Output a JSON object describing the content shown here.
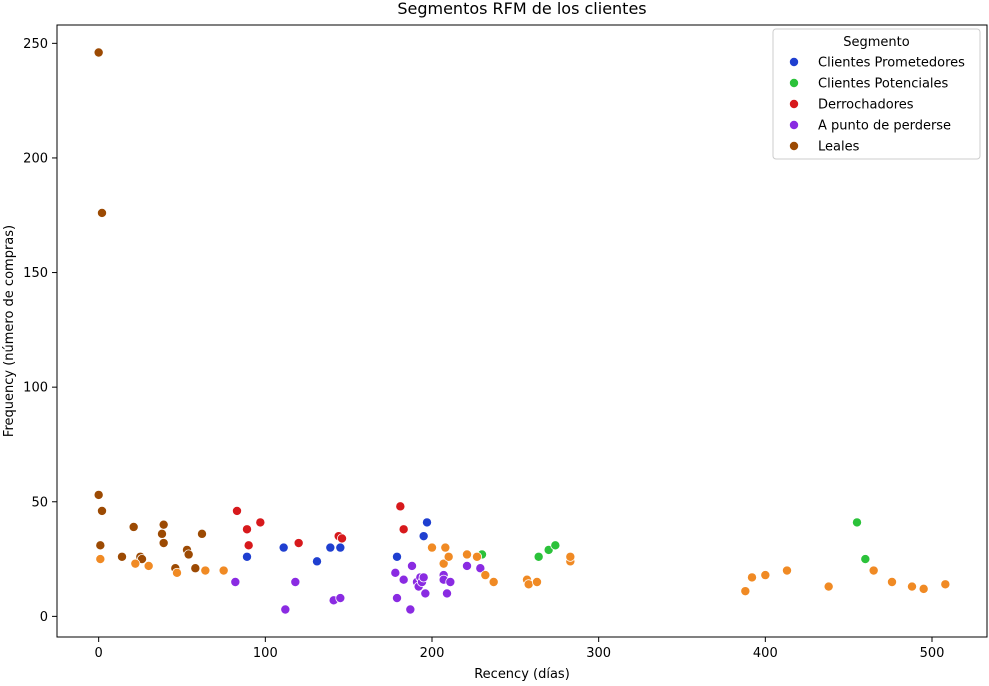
{
  "chart_data": {
    "type": "scatter",
    "title": "Segmentos RFM de los clientes",
    "xlabel": "Recency (días)",
    "ylabel": "Frequency (número de compras)",
    "xlim": [
      -25,
      533
    ],
    "ylim": [
      -9,
      258
    ],
    "xticks": [
      0,
      100,
      200,
      300,
      400,
      500
    ],
    "yticks": [
      0,
      50,
      100,
      150,
      200,
      250
    ],
    "grid": false,
    "legend": {
      "title": "Segmento",
      "placement": "top-right",
      "entries": [
        "Clientes Prometedores",
        "Clientes Potenciales",
        "Derrochadores",
        "A punto de perderse",
        "Leales"
      ]
    },
    "series": [
      {
        "name": "Clientes Prometedores",
        "color": "#1f3fd0",
        "points": [
          [
            89,
            26
          ],
          [
            111,
            30
          ],
          [
            131,
            24
          ],
          [
            139,
            30
          ],
          [
            145,
            30
          ],
          [
            179,
            26
          ],
          [
            195,
            35
          ],
          [
            197,
            41
          ]
        ]
      },
      {
        "name": "Clientes Potenciales",
        "color": "#2bc23a",
        "points": [
          [
            230,
            27
          ],
          [
            264,
            26
          ],
          [
            270,
            29
          ],
          [
            274,
            31
          ],
          [
            455,
            41
          ],
          [
            460,
            25
          ]
        ]
      },
      {
        "name": "Derrochadores",
        "color": "#d7191c",
        "points": [
          [
            83,
            46
          ],
          [
            89,
            38
          ],
          [
            90,
            31
          ],
          [
            97,
            41
          ],
          [
            120,
            32
          ],
          [
            144,
            35
          ],
          [
            146,
            34
          ],
          [
            181,
            48
          ],
          [
            183,
            38
          ]
        ]
      },
      {
        "name": "A punto de perderse",
        "color": "#8a2be2",
        "points": [
          [
            82,
            15
          ],
          [
            112,
            3
          ],
          [
            118,
            15
          ],
          [
            141,
            7
          ],
          [
            145,
            8
          ],
          [
            178,
            19
          ],
          [
            179,
            8
          ],
          [
            183,
            16
          ],
          [
            187,
            3
          ],
          [
            188,
            22
          ],
          [
            191,
            15
          ],
          [
            192,
            13
          ],
          [
            193,
            17
          ],
          [
            194,
            15
          ],
          [
            195,
            17
          ],
          [
            196,
            10
          ],
          [
            207,
            18
          ],
          [
            207,
            16
          ],
          [
            209,
            10
          ],
          [
            211,
            15
          ],
          [
            221,
            22
          ],
          [
            229,
            21
          ]
        ]
      },
      {
        "name": "Leales",
        "color": "#9c4a03",
        "points": [
          [
            0,
            246
          ],
          [
            2,
            176
          ],
          [
            0,
            53
          ],
          [
            2,
            46
          ],
          [
            1,
            31
          ],
          [
            14,
            26
          ],
          [
            21,
            39
          ],
          [
            25,
            26
          ],
          [
            26,
            25
          ],
          [
            38,
            36
          ],
          [
            39,
            40
          ],
          [
            39,
            32
          ],
          [
            46,
            21
          ],
          [
            53,
            29
          ],
          [
            54,
            27
          ],
          [
            58,
            21
          ],
          [
            62,
            36
          ]
        ]
      },
      {
        "color": "#f08a24",
        "points": [
          [
            1,
            25
          ],
          [
            22,
            23
          ],
          [
            30,
            22
          ],
          [
            47,
            19
          ],
          [
            64,
            20
          ],
          [
            75,
            20
          ],
          [
            200,
            30
          ],
          [
            207,
            23
          ],
          [
            208,
            30
          ],
          [
            210,
            26
          ],
          [
            221,
            27
          ],
          [
            227,
            26
          ],
          [
            232,
            18
          ],
          [
            237,
            15
          ],
          [
            257,
            16
          ],
          [
            258,
            14
          ],
          [
            263,
            15
          ],
          [
            283,
            24
          ],
          [
            283,
            26
          ],
          [
            388,
            11
          ],
          [
            392,
            17
          ],
          [
            400,
            18
          ],
          [
            413,
            20
          ],
          [
            438,
            13
          ],
          [
            465,
            20
          ],
          [
            476,
            15
          ],
          [
            488,
            13
          ],
          [
            495,
            12
          ],
          [
            508,
            14
          ]
        ]
      }
    ]
  }
}
